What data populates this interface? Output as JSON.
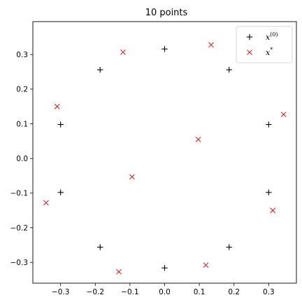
{
  "chart_data": {
    "type": "scatter",
    "title": "10 points",
    "xlabel": "",
    "ylabel": "",
    "xlim": [
      -0.38,
      0.38
    ],
    "ylim": [
      -0.36,
      0.395
    ],
    "xticks": [
      -0.3,
      -0.2,
      -0.1,
      0.0,
      0.1,
      0.2,
      0.3
    ],
    "xtick_labels": [
      "−0.3",
      "−0.2",
      "−0.1",
      "0.0",
      "0.1",
      "0.2",
      "0.3"
    ],
    "yticks": [
      -0.3,
      -0.2,
      -0.1,
      0.0,
      0.1,
      0.2,
      0.3
    ],
    "ytick_labels": [
      "−0.3",
      "−0.2",
      "−0.1",
      "0.0",
      "0.1",
      "0.2",
      "0.3"
    ],
    "grid": false,
    "legend": "top-right",
    "series": [
      {
        "name": "x(0)",
        "name_base": "x",
        "name_sup": "(0)",
        "marker": "plus",
        "color": "#000000",
        "points": [
          [
            0.0,
            0.316
          ],
          [
            0.186,
            0.256
          ],
          [
            0.3,
            0.098
          ],
          [
            0.3,
            -0.098
          ],
          [
            0.186,
            -0.256
          ],
          [
            0.0,
            -0.316
          ],
          [
            -0.186,
            -0.256
          ],
          [
            -0.3,
            -0.098
          ],
          [
            -0.3,
            0.098
          ],
          [
            -0.186,
            0.256
          ]
        ]
      },
      {
        "name": "x*",
        "name_base": "x",
        "name_sup": "*",
        "marker": "x",
        "color": "#d62728",
        "points": [
          [
            0.134,
            0.328
          ],
          [
            -0.12,
            0.307
          ],
          [
            -0.31,
            0.15
          ],
          [
            0.343,
            0.127
          ],
          [
            0.097,
            0.055
          ],
          [
            -0.094,
            -0.053
          ],
          [
            -0.342,
            -0.128
          ],
          [
            0.312,
            -0.15
          ],
          [
            0.119,
            -0.308
          ],
          [
            -0.132,
            -0.327
          ]
        ]
      }
    ]
  }
}
